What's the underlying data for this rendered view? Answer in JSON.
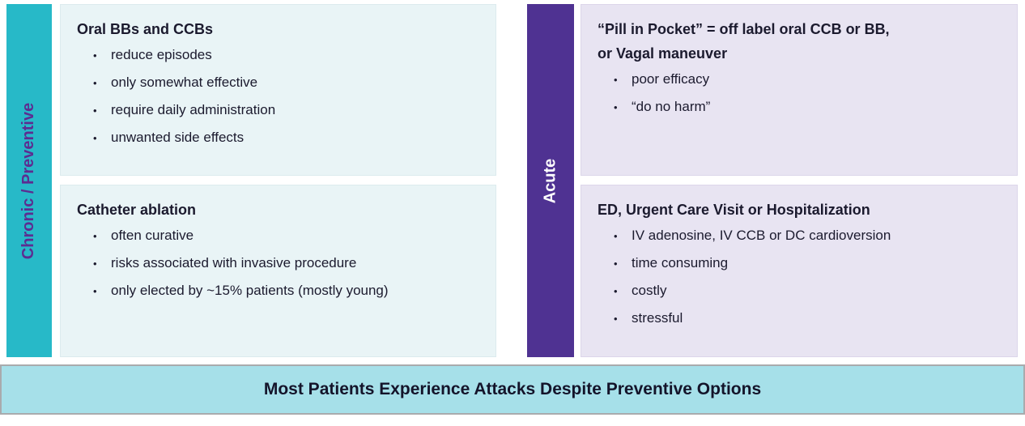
{
  "chronic": {
    "label": "Chronic / Preventive",
    "boxes": [
      {
        "title": "Oral BBs and CCBs",
        "bullets": [
          "reduce episodes",
          "only somewhat effective",
          "require daily administration",
          "unwanted side effects"
        ]
      },
      {
        "title": "Catheter ablation",
        "bullets": [
          "often curative",
          "risks associated with invasive procedure",
          "only elected by ~15% patients (mostly young)"
        ]
      }
    ]
  },
  "acute": {
    "label": "Acute",
    "boxes": [
      {
        "title_line1": "“Pill in Pocket” = off label oral CCB or BB,",
        "title_line2": "or Vagal maneuver",
        "bullets": [
          "poor efficacy",
          "“do no harm”"
        ]
      },
      {
        "title": "ED, Urgent Care Visit or Hospitalization",
        "bullets": [
          "IV adenosine, IV CCB or DC cardioversion",
          "time consuming",
          "costly",
          "stressful"
        ]
      }
    ]
  },
  "banner": {
    "text": "Most Patients Experience Attacks Despite Preventive Options"
  },
  "colors": {
    "teal_bar": "#27b9c8",
    "purple_bar": "#4f3292",
    "chronic_box_bg": "#e9f4f6",
    "acute_box_bg": "#e8e4f2",
    "banner_bg": "#a6e0e9",
    "banner_border": "#a9abad",
    "label_purple": "#5c2d91",
    "text": "#1b1a2e"
  }
}
